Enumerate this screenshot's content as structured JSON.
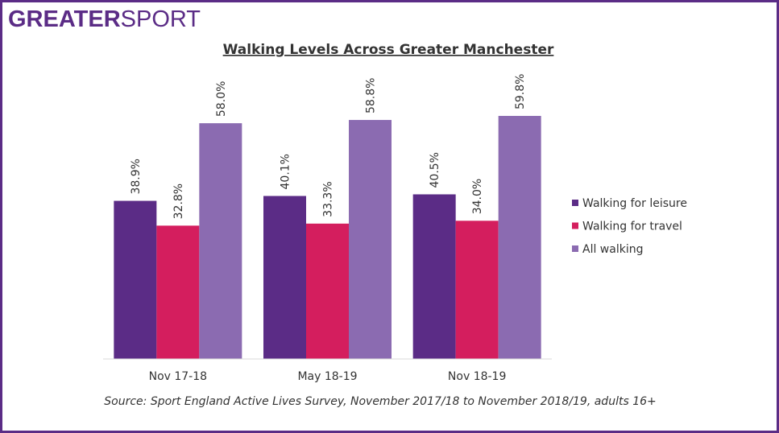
{
  "logo": {
    "bold": "GREATER",
    "light": "SPORT"
  },
  "chart_data": {
    "type": "bar",
    "title": "Walking Levels Across Greater Manchester",
    "categories": [
      "Nov 17-18",
      "May 18-19",
      "Nov 18-19"
    ],
    "series": [
      {
        "name": "Walking for leisure",
        "color": "#5b2c86",
        "values": [
          38.9,
          40.1,
          40.5
        ],
        "value_labels": [
          "38.9%",
          "40.1%",
          "40.5%"
        ]
      },
      {
        "name": "Walking for travel",
        "color": "#d41e5e",
        "values": [
          32.8,
          33.3,
          34.0
        ],
        "value_labels": [
          "32.8%",
          "33.3%",
          "34.0%"
        ]
      },
      {
        "name": "All walking",
        "color": "#8b6bb1",
        "values": [
          58.0,
          58.8,
          59.8
        ],
        "value_labels": [
          "58.0%",
          "58.8%",
          "59.8%"
        ]
      }
    ],
    "ylim": [
      0,
      80
    ],
    "legend": "right",
    "source": "Source: Sport England Active Lives Survey, November 2017/18 to November 2018/19, adults 16+"
  }
}
